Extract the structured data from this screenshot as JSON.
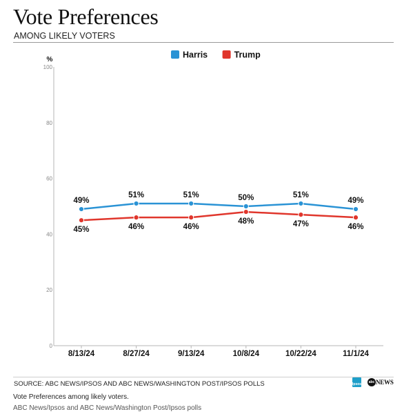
{
  "header": {
    "title": "Vote Preferences",
    "subtitle": "AMONG LIKELY VOTERS"
  },
  "chart_data": {
    "type": "line",
    "ylabel": "%",
    "ylim": [
      0,
      100
    ],
    "yticks": [
      0,
      20,
      40,
      60,
      80,
      100
    ],
    "categories": [
      "8/13/24",
      "8/27/24",
      "9/13/24",
      "10/8/24",
      "10/22/24",
      "11/1/24"
    ],
    "series": [
      {
        "name": "Harris",
        "color": "#2a93d5",
        "values": [
          49,
          51,
          51,
          50,
          51,
          49
        ],
        "labels": [
          "49%",
          "51%",
          "51%",
          "50%",
          "51%",
          "49%"
        ],
        "label_position": "above"
      },
      {
        "name": "Trump",
        "color": "#e0362c",
        "values": [
          45,
          46,
          46,
          48,
          47,
          46
        ],
        "labels": [
          "45%",
          "46%",
          "46%",
          "48%",
          "47%",
          "46%"
        ],
        "label_position": "below"
      }
    ],
    "legend_position": "top-center",
    "grid": false
  },
  "footer": {
    "source": "SOURCE: ABC NEWS/IPSOS AND ABC NEWS/WASHINGTON POST/IPSOS POLLS",
    "ipsos_logo_text": "Ipsos",
    "abc_logo_mark": "abc",
    "abc_logo_text": "NEWS",
    "caption": "Vote Preferences among likely voters.",
    "credit": "ABC News/Ipsos and ABC News/Washington Post/Ipsos polls"
  }
}
